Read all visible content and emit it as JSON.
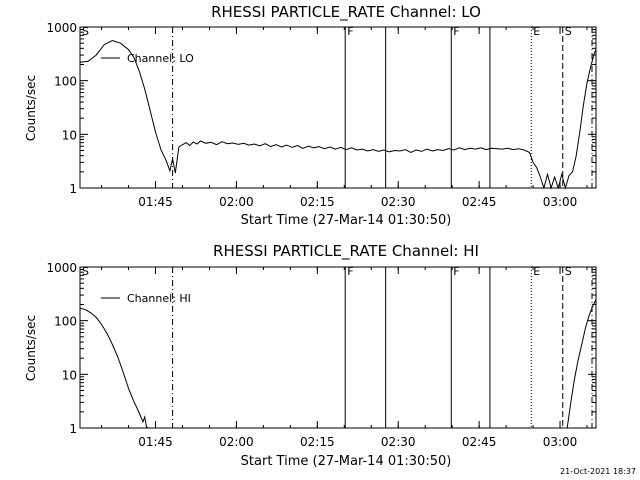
{
  "footer_timestamp": "21-Oct-2021 18:37",
  "chart_data": [
    {
      "type": "line",
      "title": "RHESSI PARTICLE_RATE Channel: LO",
      "xlabel": "Start Time (27-Mar-14 01:30:50)",
      "ylabel": "Counts/sec",
      "yscale": "log",
      "xlim": [
        0,
        5740
      ],
      "ylim": [
        1,
        1000
      ],
      "xtick_values": [
        840,
        1740,
        2640,
        3540,
        4440,
        5340
      ],
      "xtick_labels": [
        "01:45",
        "02:00",
        "02:15",
        "02:30",
        "02:45",
        "03:00"
      ],
      "ytick_values": [
        1,
        10,
        100,
        1000
      ],
      "ytick_labels": [
        "1",
        "10",
        "100",
        "1000"
      ],
      "legend": {
        "label": "Channel: LO",
        "placement": "upper-left"
      },
      "markers": [
        {
          "label": "S",
          "x": 0,
          "style": "dashdot"
        },
        {
          "label": "",
          "x": 1030,
          "style": "dashdot"
        },
        {
          "label": "F",
          "x": 2950,
          "style": "solid"
        },
        {
          "label": "",
          "x": 3400,
          "style": "solid"
        },
        {
          "label": "F",
          "x": 4130,
          "style": "solid"
        },
        {
          "label": "",
          "x": 4560,
          "style": "solid"
        },
        {
          "label": "E",
          "x": 5020,
          "style": "dotted"
        },
        {
          "label": "S",
          "x": 5370,
          "style": "dashed"
        },
        {
          "label": "",
          "x": 5840,
          "style": "dashdot"
        }
      ],
      "series": [
        {
          "name": "Channel: LO",
          "x": [
            0,
            90,
            180,
            270,
            360,
            450,
            540,
            600,
            660,
            720,
            780,
            840,
            900,
            960,
            1000,
            1030,
            1060,
            1100,
            1140,
            1180,
            1220,
            1260,
            1300,
            1340,
            1400,
            1460,
            1520,
            1580,
            1640,
            1700,
            1760,
            1820,
            1880,
            1940,
            2000,
            2060,
            2120,
            2180,
            2240,
            2300,
            2360,
            2420,
            2480,
            2540,
            2600,
            2660,
            2720,
            2780,
            2840,
            2900,
            2960,
            3020,
            3080,
            3140,
            3200,
            3260,
            3320,
            3380,
            3440,
            3500,
            3560,
            3620,
            3680,
            3740,
            3800,
            3860,
            3920,
            3980,
            4040,
            4100,
            4160,
            4220,
            4280,
            4340,
            4400,
            4460,
            4520,
            4580,
            4640,
            4700,
            4760,
            4820,
            4880,
            4940,
            5000,
            5040,
            5080,
            5120,
            5160,
            5200,
            5240,
            5280,
            5320,
            5360,
            5400,
            5440,
            5480,
            5520,
            5560,
            5600,
            5640,
            5680,
            5720,
            5740
          ],
          "y": [
            220,
            230,
            300,
            470,
            560,
            500,
            380,
            270,
            150,
            70,
            28,
            11,
            5.2,
            3.2,
            2.1,
            3.5,
            1.9,
            5.8,
            6.4,
            7.0,
            6.2,
            7.2,
            6.6,
            7.5,
            6.8,
            7.1,
            6.4,
            7.3,
            6.7,
            6.9,
            6.5,
            6.8,
            6.3,
            6.6,
            6.1,
            6.7,
            5.9,
            6.4,
            5.8,
            6.3,
            5.7,
            6.2,
            5.5,
            6.0,
            5.6,
            5.9,
            5.4,
            5.8,
            5.3,
            5.7,
            5.2,
            5.6,
            5.1,
            5.3,
            4.9,
            5.2,
            4.8,
            5.1,
            4.7,
            5.0,
            4.9,
            5.2,
            4.6,
            5.1,
            4.8,
            5.3,
            4.9,
            5.2,
            5.0,
            5.4,
            5.1,
            5.6,
            5.2,
            5.5,
            5.3,
            5.6,
            5.2,
            5.5,
            5.4,
            5.3,
            5.5,
            5.2,
            5.4,
            5.1,
            4.6,
            3.0,
            2.4,
            1.6,
            1.0,
            1.8,
            1.0,
            1.6,
            1.0,
            1.8,
            1.0,
            1.7,
            2.0,
            4.0,
            11,
            35,
            90,
            180,
            320,
            380
          ]
        }
      ]
    },
    {
      "type": "line",
      "title": "RHESSI PARTICLE_RATE Channel: HI",
      "xlabel": "Start Time (27-Mar-14 01:30:50)",
      "ylabel": "Counts/sec",
      "yscale": "log",
      "xlim": [
        0,
        5740
      ],
      "ylim": [
        1,
        1000
      ],
      "xtick_values": [
        840,
        1740,
        2640,
        3540,
        4440,
        5340
      ],
      "xtick_labels": [
        "01:45",
        "02:00",
        "02:15",
        "02:30",
        "02:45",
        "03:00"
      ],
      "ytick_values": [
        1,
        10,
        100,
        1000
      ],
      "ytick_labels": [
        "1",
        "10",
        "100",
        "1000"
      ],
      "legend": {
        "label": "Channel: HI",
        "placement": "upper-left"
      },
      "markers": [
        {
          "label": "S",
          "x": 0,
          "style": "dashdot"
        },
        {
          "label": "",
          "x": 1030,
          "style": "dashdot"
        },
        {
          "label": "F",
          "x": 2950,
          "style": "solid"
        },
        {
          "label": "",
          "x": 3400,
          "style": "solid"
        },
        {
          "label": "F",
          "x": 4130,
          "style": "solid"
        },
        {
          "label": "",
          "x": 4560,
          "style": "solid"
        },
        {
          "label": "E",
          "x": 5020,
          "style": "dotted"
        },
        {
          "label": "S",
          "x": 5370,
          "style": "dashed"
        },
        {
          "label": "",
          "x": 5840,
          "style": "dashdot"
        }
      ],
      "series": [
        {
          "name": "Channel: HI",
          "x": [
            0,
            60,
            120,
            180,
            240,
            300,
            360,
            420,
            480,
            540,
            600,
            660,
            700,
            720,
            740,
            760,
            5420,
            5460,
            5500,
            5540,
            5580,
            5620,
            5660,
            5700,
            5740
          ],
          "y": [
            170,
            160,
            140,
            115,
            85,
            58,
            36,
            21,
            11,
            5.5,
            3.1,
            1.9,
            1.3,
            1.6,
            1.05,
            1.0,
            1.0,
            3.0,
            8,
            18,
            35,
            70,
            120,
            180,
            250
          ]
        }
      ]
    }
  ]
}
